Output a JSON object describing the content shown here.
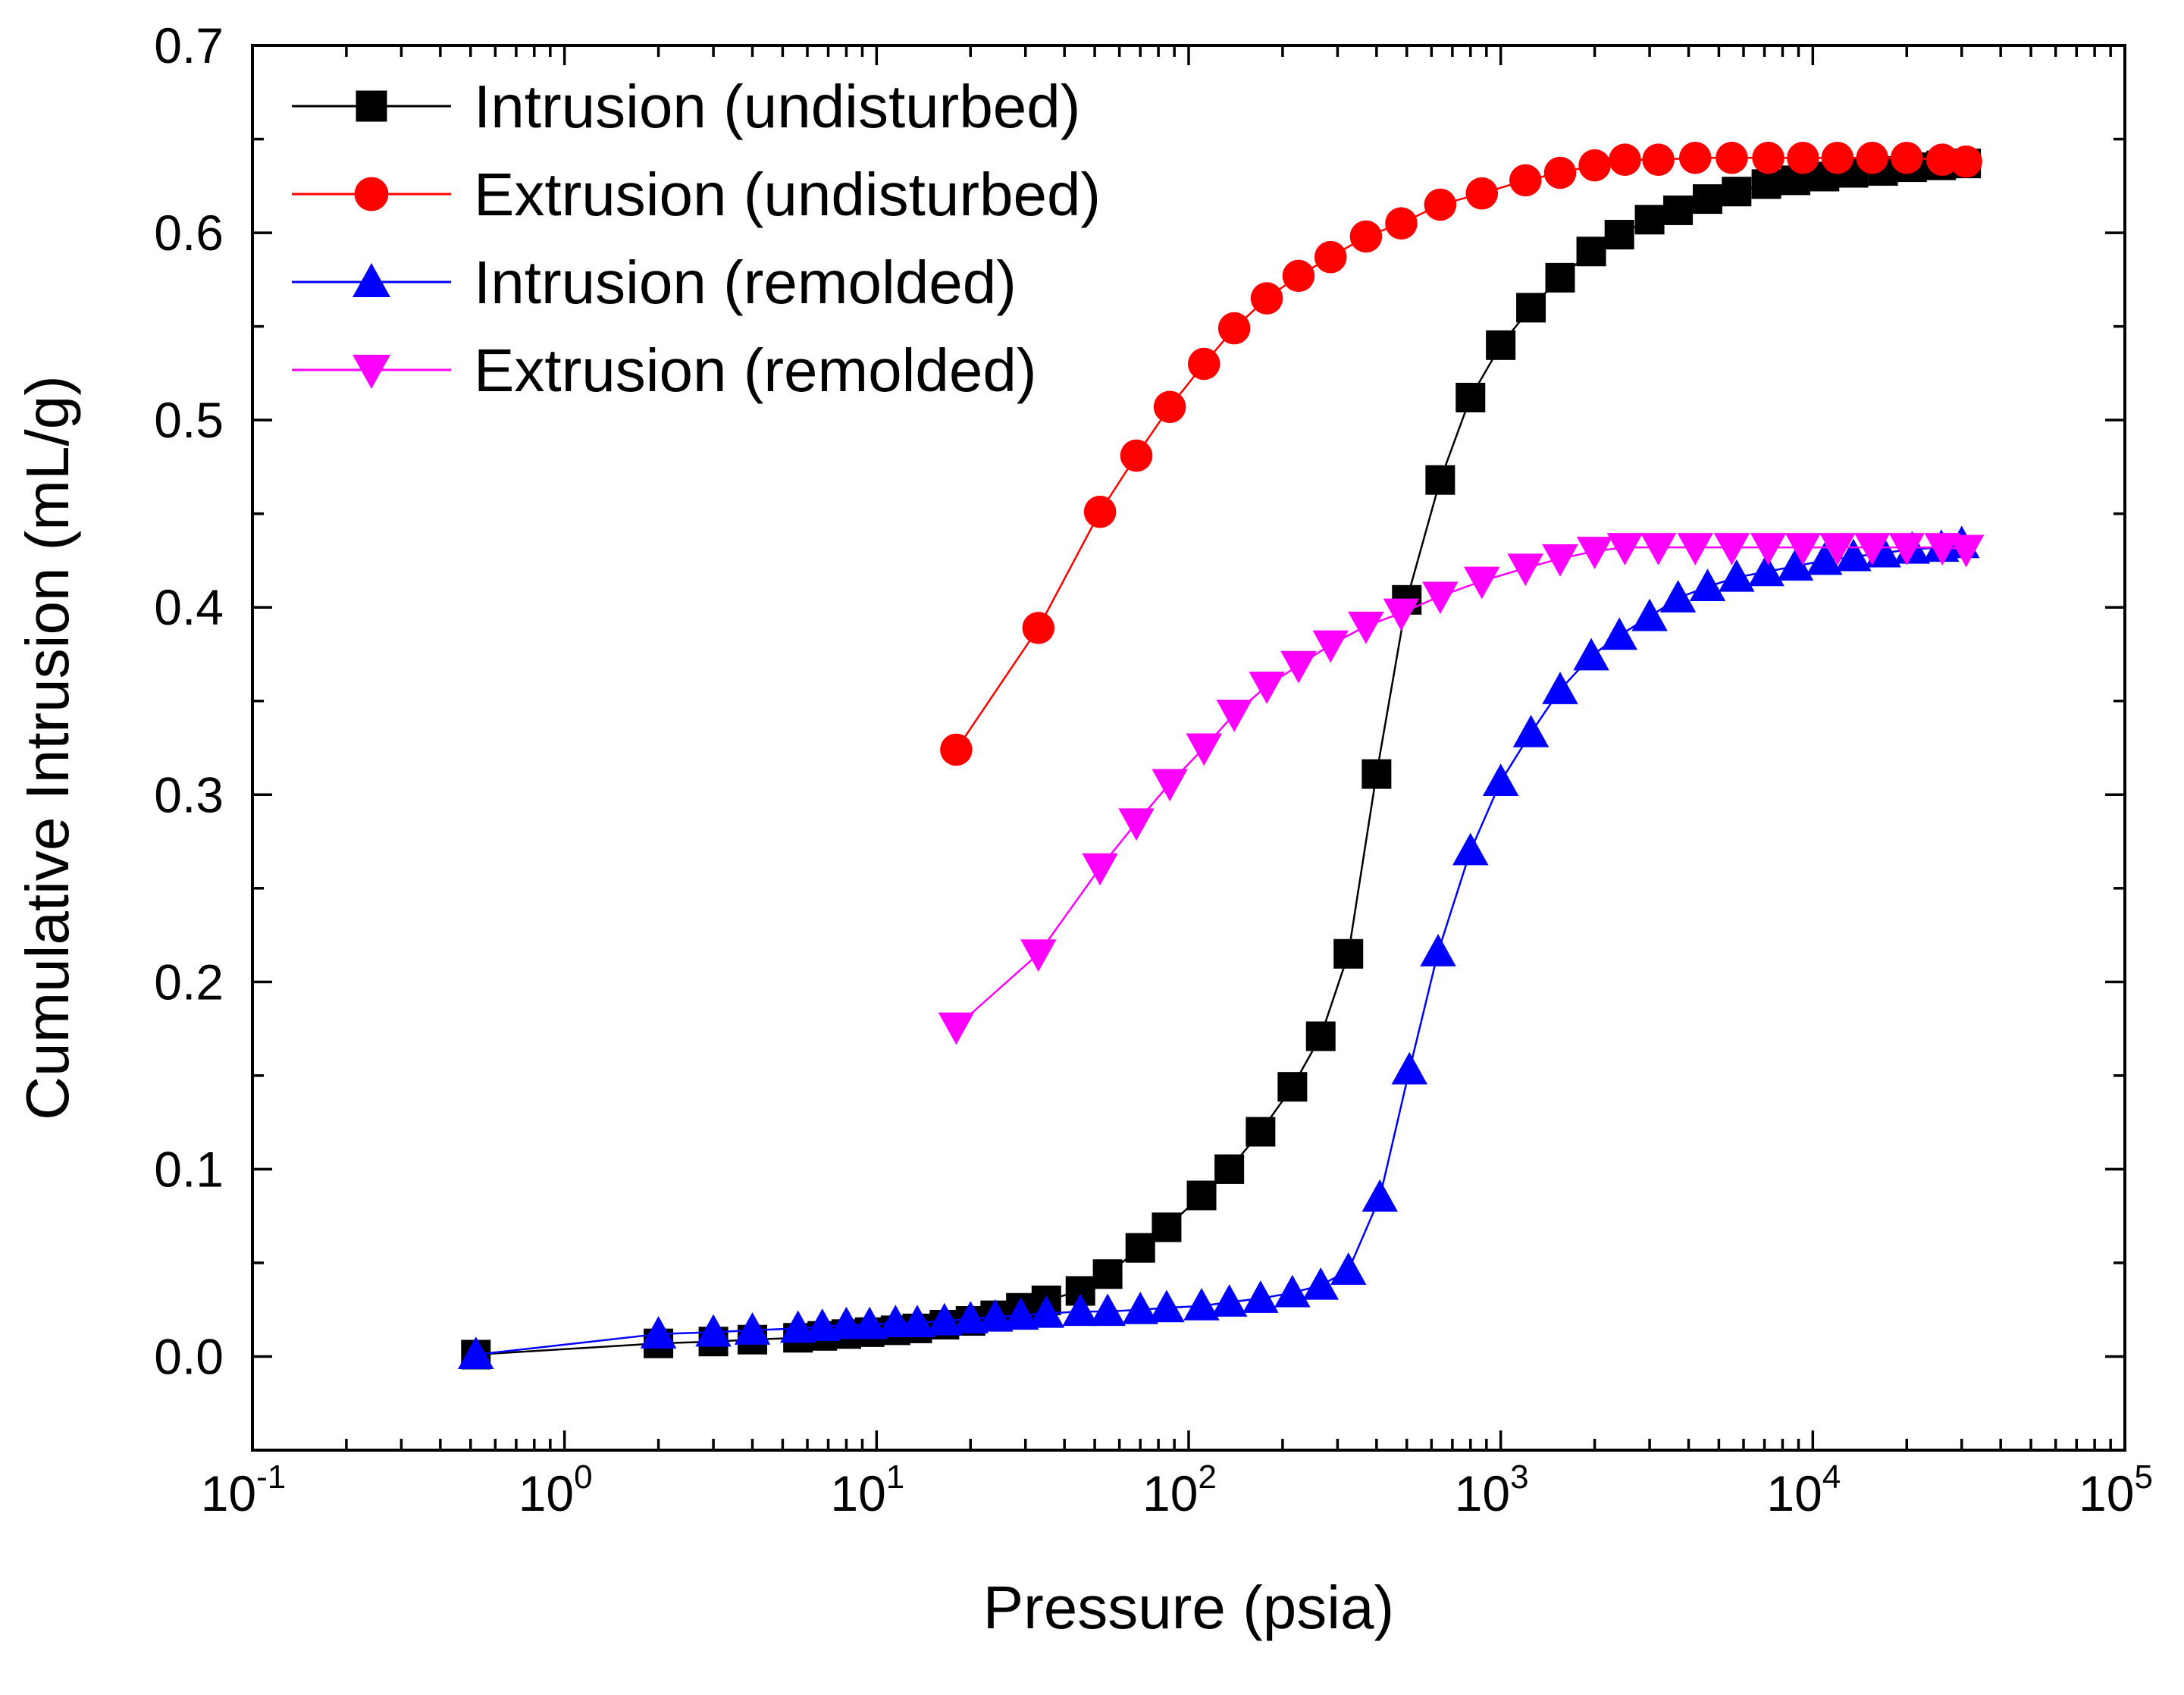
{
  "chart_data": {
    "type": "scatter",
    "title": "",
    "xlabel": "Pressure (psia)",
    "ylabel": "Cumulative Intrusion (mL/g)",
    "x_scale": "log",
    "xlim": [
      0.1,
      100000
    ],
    "ylim": [
      -0.05,
      0.7
    ],
    "x_tick_labels": [
      {
        "base": "10",
        "exp": "-1",
        "value": 0.1
      },
      {
        "base": "10",
        "exp": "0",
        "value": 1
      },
      {
        "base": "10",
        "exp": "1",
        "value": 10
      },
      {
        "base": "10",
        "exp": "2",
        "value": 100
      },
      {
        "base": "10",
        "exp": "3",
        "value": 1000
      },
      {
        "base": "10",
        "exp": "4",
        "value": 10000
      },
      {
        "base": "10",
        "exp": "5",
        "value": 100000
      }
    ],
    "y_tick_labels": [
      "0.0",
      "0.1",
      "0.2",
      "0.3",
      "0.4",
      "0.5",
      "0.6",
      "0.7"
    ],
    "grid": false,
    "legend_position": "top-left",
    "series": [
      {
        "name": "Intrusion (undisturbed)",
        "color": "#000000",
        "marker": "square",
        "x": [
          0.52,
          2.0,
          3.0,
          4.0,
          5.6,
          6.7,
          8.0,
          9.5,
          11.5,
          13.5,
          16.5,
          20,
          24,
          29,
          35,
          45,
          55,
          70,
          85,
          110,
          135,
          170,
          215,
          265,
          325,
          400,
          500,
          640,
          800,
          1000,
          1250,
          1550,
          1950,
          2400,
          3000,
          3700,
          4600,
          5700,
          7100,
          8800,
          10900,
          13500,
          16800,
          20800,
          25800,
          31000
        ],
        "y": [
          0.001,
          0.007,
          0.008,
          0.009,
          0.01,
          0.011,
          0.012,
          0.013,
          0.014,
          0.015,
          0.017,
          0.019,
          0.022,
          0.026,
          0.03,
          0.035,
          0.044,
          0.058,
          0.069,
          0.086,
          0.1,
          0.12,
          0.144,
          0.171,
          0.215,
          0.311,
          0.404,
          0.468,
          0.512,
          0.54,
          0.56,
          0.576,
          0.59,
          0.599,
          0.607,
          0.612,
          0.618,
          0.622,
          0.626,
          0.628,
          0.63,
          0.632,
          0.633,
          0.635,
          0.636,
          0.637
        ]
      },
      {
        "name": "Extrusion (undisturbed)",
        "color": "#ff0000",
        "marker": "circle",
        "x": [
          18,
          33,
          52,
          68,
          87,
          112,
          140,
          178,
          225,
          285,
          370,
          480,
          640,
          870,
          1200,
          1550,
          2000,
          2500,
          3200,
          4200,
          5500,
          7200,
          9300,
          12000,
          15500,
          20000,
          26000,
          31000
        ],
        "y": [
          0.324,
          0.389,
          0.451,
          0.481,
          0.507,
          0.53,
          0.549,
          0.565,
          0.577,
          0.587,
          0.598,
          0.605,
          0.615,
          0.621,
          0.628,
          0.632,
          0.636,
          0.639,
          0.639,
          0.64,
          0.64,
          0.64,
          0.64,
          0.64,
          0.64,
          0.64,
          0.639,
          0.638
        ]
      },
      {
        "name": "Intrusion (remolded)",
        "color": "#0000ff",
        "marker": "triangle-up",
        "x": [
          0.52,
          2.0,
          3.0,
          4.0,
          5.6,
          6.7,
          8.0,
          9.5,
          11.5,
          13.5,
          16.5,
          20,
          24,
          29,
          35,
          45,
          55,
          70,
          85,
          110,
          135,
          170,
          215,
          265,
          325,
          410,
          510,
          630,
          800,
          1000,
          1250,
          1550,
          1950,
          2400,
          3000,
          3700,
          4600,
          5700,
          7100,
          8800,
          10900,
          13500,
          16800,
          20800,
          25800,
          30000
        ],
        "y": [
          0.001,
          0.012,
          0.013,
          0.014,
          0.015,
          0.016,
          0.017,
          0.017,
          0.018,
          0.018,
          0.019,
          0.02,
          0.021,
          0.022,
          0.023,
          0.024,
          0.024,
          0.025,
          0.026,
          0.027,
          0.029,
          0.031,
          0.034,
          0.038,
          0.046,
          0.085,
          0.153,
          0.216,
          0.27,
          0.307,
          0.333,
          0.356,
          0.374,
          0.385,
          0.395,
          0.405,
          0.411,
          0.416,
          0.419,
          0.422,
          0.425,
          0.427,
          0.429,
          0.431,
          0.432,
          0.434
        ]
      },
      {
        "name": "Extrusion (remolded)",
        "color": "#ff00ff",
        "marker": "triangle-down",
        "x": [
          18,
          33,
          52,
          68,
          87,
          112,
          140,
          178,
          225,
          285,
          370,
          480,
          640,
          870,
          1200,
          1550,
          2000,
          2500,
          3200,
          4200,
          5500,
          7200,
          9300,
          12000,
          15500,
          20000,
          26000,
          31000
        ],
        "y": [
          0.176,
          0.215,
          0.261,
          0.285,
          0.306,
          0.325,
          0.343,
          0.358,
          0.369,
          0.38,
          0.39,
          0.397,
          0.406,
          0.414,
          0.421,
          0.426,
          0.43,
          0.432,
          0.432,
          0.432,
          0.432,
          0.432,
          0.432,
          0.432,
          0.432,
          0.432,
          0.432,
          0.431
        ]
      }
    ]
  }
}
